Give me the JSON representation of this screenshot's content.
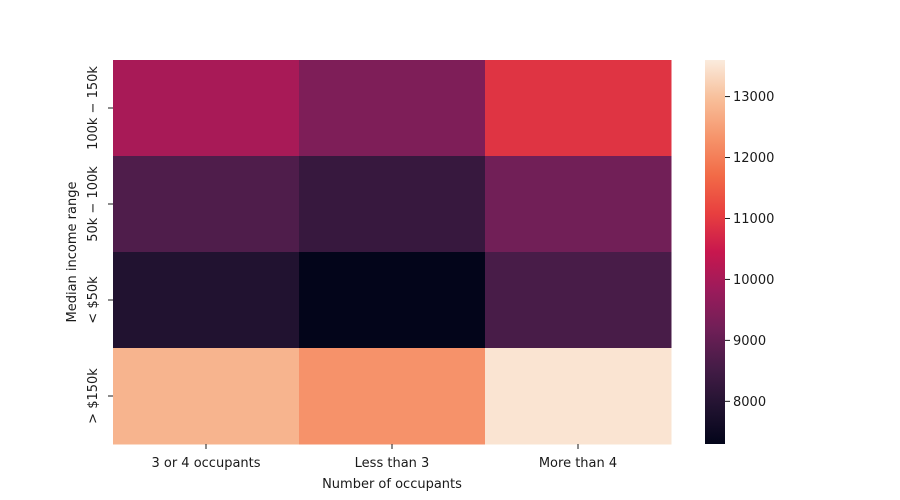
{
  "chart_data": {
    "type": "heatmap",
    "title": "",
    "xlabel": "Number of occupants",
    "ylabel": "Median income range",
    "x_categories": [
      "3 or 4 occupants",
      "Less than 3",
      "More than 4"
    ],
    "y_categories": [
      "$100k-$150k",
      "$50k-$100k",
      "< $50k",
      "> $150k"
    ],
    "y_tick_labels": [
      "100k − 150k",
      "50k − 100k",
      "< $50k",
      "> $150k"
    ],
    "values": [
      [
        10000,
        9400,
        10900
      ],
      [
        8700,
        8300,
        9200
      ],
      [
        7900,
        7300,
        8600
      ],
      [
        12800,
        12300,
        13500
      ]
    ],
    "colorbar": {
      "min": 7300,
      "max": 13600,
      "ticks": [
        8000,
        9000,
        10000,
        11000,
        12000,
        13000
      ],
      "colormap": "rocket"
    },
    "grid": false,
    "legend": "colorbar-right"
  }
}
